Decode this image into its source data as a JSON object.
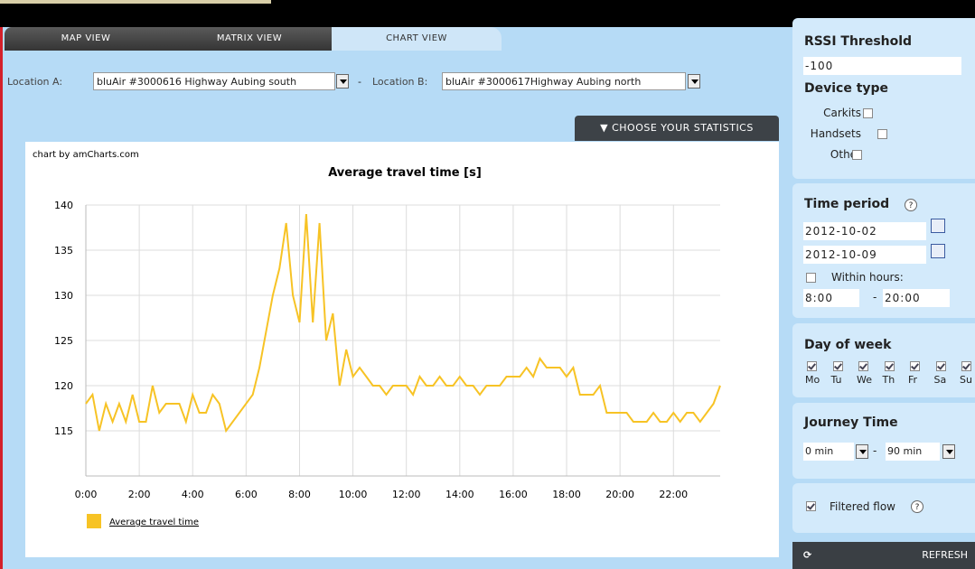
{
  "tabs": [
    "MAP VIEW",
    "MATRIX VIEW",
    "CHART VIEW"
  ],
  "location_a_label": "Location A:",
  "location_a_value": "bluAir #3000616 Highway Aubing south",
  "location_separator": "-",
  "location_b_label": "Location B:",
  "location_b_value": "bluAir #3000617Highway Aubing north",
  "stats_button": "CHOOSE YOUR STATISTICS",
  "chart_credit": "chart by amCharts.com",
  "chart_data": {
    "type": "line",
    "title": "Average travel time [s]",
    "x": [
      0,
      0.25,
      0.5,
      0.75,
      1,
      1.25,
      1.5,
      1.75,
      2,
      2.25,
      2.5,
      2.75,
      3,
      3.25,
      3.5,
      3.75,
      4,
      4.25,
      4.5,
      4.75,
      5,
      5.25,
      6.25,
      6.5,
      6.75,
      7,
      7.25,
      7.5,
      7.75,
      8,
      8.25,
      8.5,
      8.75,
      9,
      9.25,
      9.5,
      9.75,
      10,
      10.25,
      10.5,
      10.75,
      11,
      11.25,
      11.5,
      11.75,
      12,
      12.25,
      12.5,
      12.75,
      13,
      13.25,
      13.5,
      13.75,
      14,
      14.25,
      14.5,
      14.75,
      15,
      15.25,
      15.5,
      15.75,
      16,
      16.25,
      16.5,
      16.75,
      17,
      17.25,
      17.5,
      17.75,
      18,
      18.25,
      18.5,
      18.75,
      19,
      19.25,
      19.5,
      19.75,
      20,
      20.25,
      20.5,
      20.75,
      21,
      21.25,
      21.5,
      21.75,
      22,
      22.25,
      22.5,
      22.75,
      23,
      23.25,
      23.5,
      23.75
    ],
    "series": [
      {
        "name": "Average travel time",
        "color": "#f7c325",
        "values": [
          118,
          119,
          115,
          118,
          116,
          118,
          116,
          119,
          116,
          116,
          120,
          117,
          118,
          118,
          118,
          116,
          119,
          117,
          117,
          119,
          118,
          115,
          119,
          122,
          126,
          130,
          133,
          138,
          130,
          127,
          139,
          127,
          138,
          125,
          128,
          120,
          124,
          121,
          122,
          121,
          120,
          120,
          119,
          120,
          120,
          120,
          119,
          121,
          120,
          120,
          121,
          120,
          120,
          121,
          120,
          120,
          119,
          120,
          120,
          120,
          121,
          121,
          121,
          122,
          121,
          123,
          122,
          122,
          122,
          121,
          122,
          119,
          119,
          119,
          120,
          117,
          117,
          117,
          117,
          116,
          116,
          116,
          117,
          116,
          116,
          117,
          116,
          117,
          117,
          116,
          117,
          118,
          120
        ]
      }
    ],
    "xlim": [
      0,
      23.75
    ],
    "ylim": [
      110,
      140
    ],
    "xticks": [
      {
        "value": 0,
        "label": "0:00"
      },
      {
        "value": 2,
        "label": "2:00"
      },
      {
        "value": 4,
        "label": "4:00"
      },
      {
        "value": 6,
        "label": "6:00"
      },
      {
        "value": 8,
        "label": "8:00"
      },
      {
        "value": 10,
        "label": "10:00"
      },
      {
        "value": 12,
        "label": "12:00"
      },
      {
        "value": 14,
        "label": "14:00"
      },
      {
        "value": 16,
        "label": "16:00"
      },
      {
        "value": 18,
        "label": "18:00"
      },
      {
        "value": 20,
        "label": "20:00"
      },
      {
        "value": 22,
        "label": "22:00"
      }
    ],
    "yticks": [
      115,
      120,
      125,
      130,
      135,
      140
    ],
    "grid": true,
    "legend": "bottom-left"
  },
  "sidebar": {
    "rssi_title": "RSSI Threshold",
    "rssi_value": "-100",
    "device_type_title": "Device type",
    "device_types": [
      "Carkits",
      "Handsets",
      "Other"
    ],
    "time_period_title": "Time period",
    "help": "?",
    "date_from": "2012-10-02",
    "date_to": "2012-10-09",
    "within_hours": "Within hours:",
    "hours_from": "8:00",
    "hours_separator": "-",
    "hours_to": "20:00",
    "day_of_week_title": "Day of week",
    "days": [
      "Mo",
      "Tu",
      "We",
      "Th",
      "Fr",
      "Sa",
      "Su"
    ],
    "journey_title": "Journey Time",
    "journey_from": "0 min",
    "journey_separator": "-",
    "journey_to": "90 min",
    "filtered_flow": "Filtered flow",
    "refresh": "REFRESH"
  }
}
